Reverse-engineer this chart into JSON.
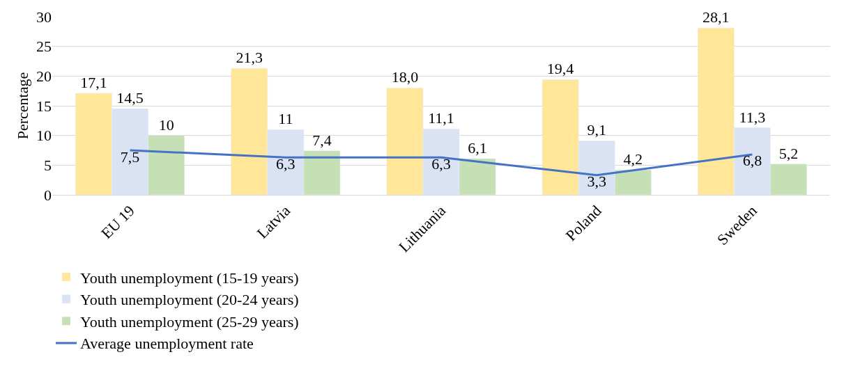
{
  "chart_data": {
    "type": "bar",
    "ylabel": "Percentage",
    "categories": [
      "EU 19",
      "Latvia",
      "Lithuania",
      "Poland",
      "Sweden"
    ],
    "series": [
      {
        "name": "Youth unemployment (15-19 years)",
        "color": "#ffe699",
        "values": [
          17.1,
          21.3,
          18.0,
          19.4,
          28.1
        ],
        "value_labels": [
          "17,1",
          "21,3",
          "18,0",
          "19,4",
          "28,1"
        ]
      },
      {
        "name": "Youth unemployment (20-24 years)",
        "color": "#dae3f3",
        "values": [
          14.5,
          11,
          11.1,
          9.1,
          11.3
        ],
        "value_labels": [
          "14,5",
          "11",
          "11,1",
          "9,1",
          "11,3"
        ]
      },
      {
        "name": "Youth unemployment (25-29 years)",
        "color": "#c5e0b4",
        "values": [
          10,
          7.4,
          6.1,
          4.2,
          5.2
        ],
        "value_labels": [
          "10",
          "7,4",
          "6,1",
          "4,2",
          "5,2"
        ]
      },
      {
        "name": "Average unemployment rate",
        "type": "line",
        "color": "#4472c4",
        "values": [
          7.5,
          6.3,
          6.3,
          3.3,
          6.8
        ],
        "value_labels": [
          "7,5",
          "6,3",
          "6,3",
          "3,3",
          "6,8"
        ]
      }
    ],
    "ylim": [
      0,
      30
    ],
    "yticks": [
      0,
      5,
      10,
      15,
      20,
      25,
      30
    ],
    "grid": "y",
    "legend": "bottom",
    "marker": "none"
  }
}
